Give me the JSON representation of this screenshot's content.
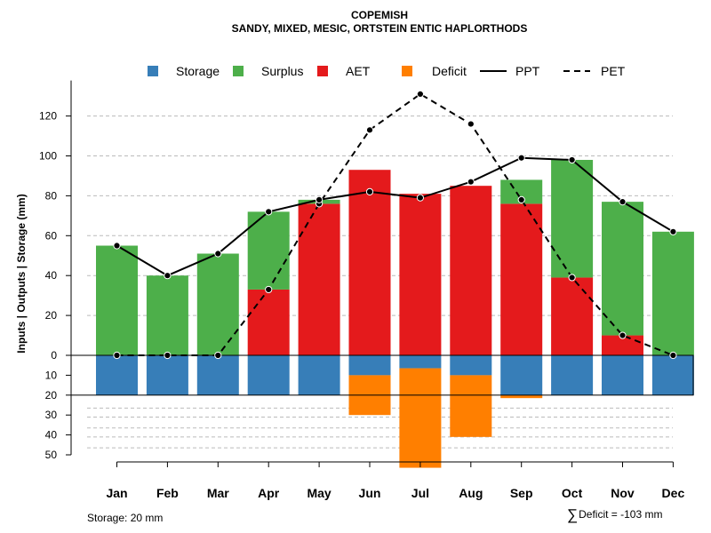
{
  "chart_data": {
    "type": "bar",
    "title": "COPEMISH",
    "subtitle": "SANDY, MIXED, MESIC, ORTSTEIN ENTIC HAPLORTHODS",
    "ylabel": "Inputs | Outputs | Storage    (mm)",
    "xlabel": "",
    "categories": [
      "Jan",
      "Feb",
      "Mar",
      "Apr",
      "May",
      "Jun",
      "Jul",
      "Aug",
      "Sep",
      "Oct",
      "Nov",
      "Dec"
    ],
    "ylim": [
      -50,
      130
    ],
    "upper_ticks": [
      0,
      20,
      40,
      60,
      80,
      100,
      120
    ],
    "lower_ticks": [
      0,
      10,
      20,
      30,
      40,
      50
    ],
    "lower_tick_labels": [
      "0",
      "10",
      "20",
      "30",
      "40",
      "50"
    ],
    "storage_capacity": 20,
    "series": [
      {
        "name": "Storage",
        "color": "#377EB8",
        "kind": "bar-below",
        "values": [
          20,
          20,
          20,
          20,
          20,
          10,
          6.5,
          10,
          20,
          20,
          20,
          20
        ]
      },
      {
        "name": "Surplus",
        "color": "#4DAF4A",
        "kind": "bar-stacked",
        "values": [
          55,
          40,
          51,
          39,
          2,
          0,
          0,
          0,
          12,
          59,
          67,
          62
        ]
      },
      {
        "name": "AET",
        "color": "#E41A1C",
        "kind": "bar-stacked",
        "values": [
          0,
          0,
          0,
          33,
          76,
          93,
          81,
          85,
          76,
          39,
          10,
          0
        ]
      },
      {
        "name": "Deficit",
        "color": "#FF7F00",
        "kind": "bar-below",
        "values": [
          0,
          0,
          0,
          0,
          0,
          20,
          50,
          31,
          1.5,
          0,
          0,
          0
        ]
      },
      {
        "name": "PPT",
        "color": "#000000",
        "kind": "line-solid",
        "values": [
          55,
          40,
          51,
          72,
          78,
          82,
          79,
          87,
          99,
          98,
          77,
          62
        ]
      },
      {
        "name": "PET",
        "color": "#000000",
        "kind": "line-dashed",
        "values": [
          0,
          0,
          0,
          33,
          76,
          113,
          131,
          116,
          78,
          39,
          10,
          0
        ]
      }
    ],
    "legend": {
      "position": "top",
      "entries": [
        "Storage",
        "Surplus",
        "AET",
        "Deficit",
        "PPT",
        "PET"
      ]
    },
    "storage_note": "Storage: 20 mm",
    "deficit_note": "Deficit = -103 mm",
    "grid": true
  }
}
